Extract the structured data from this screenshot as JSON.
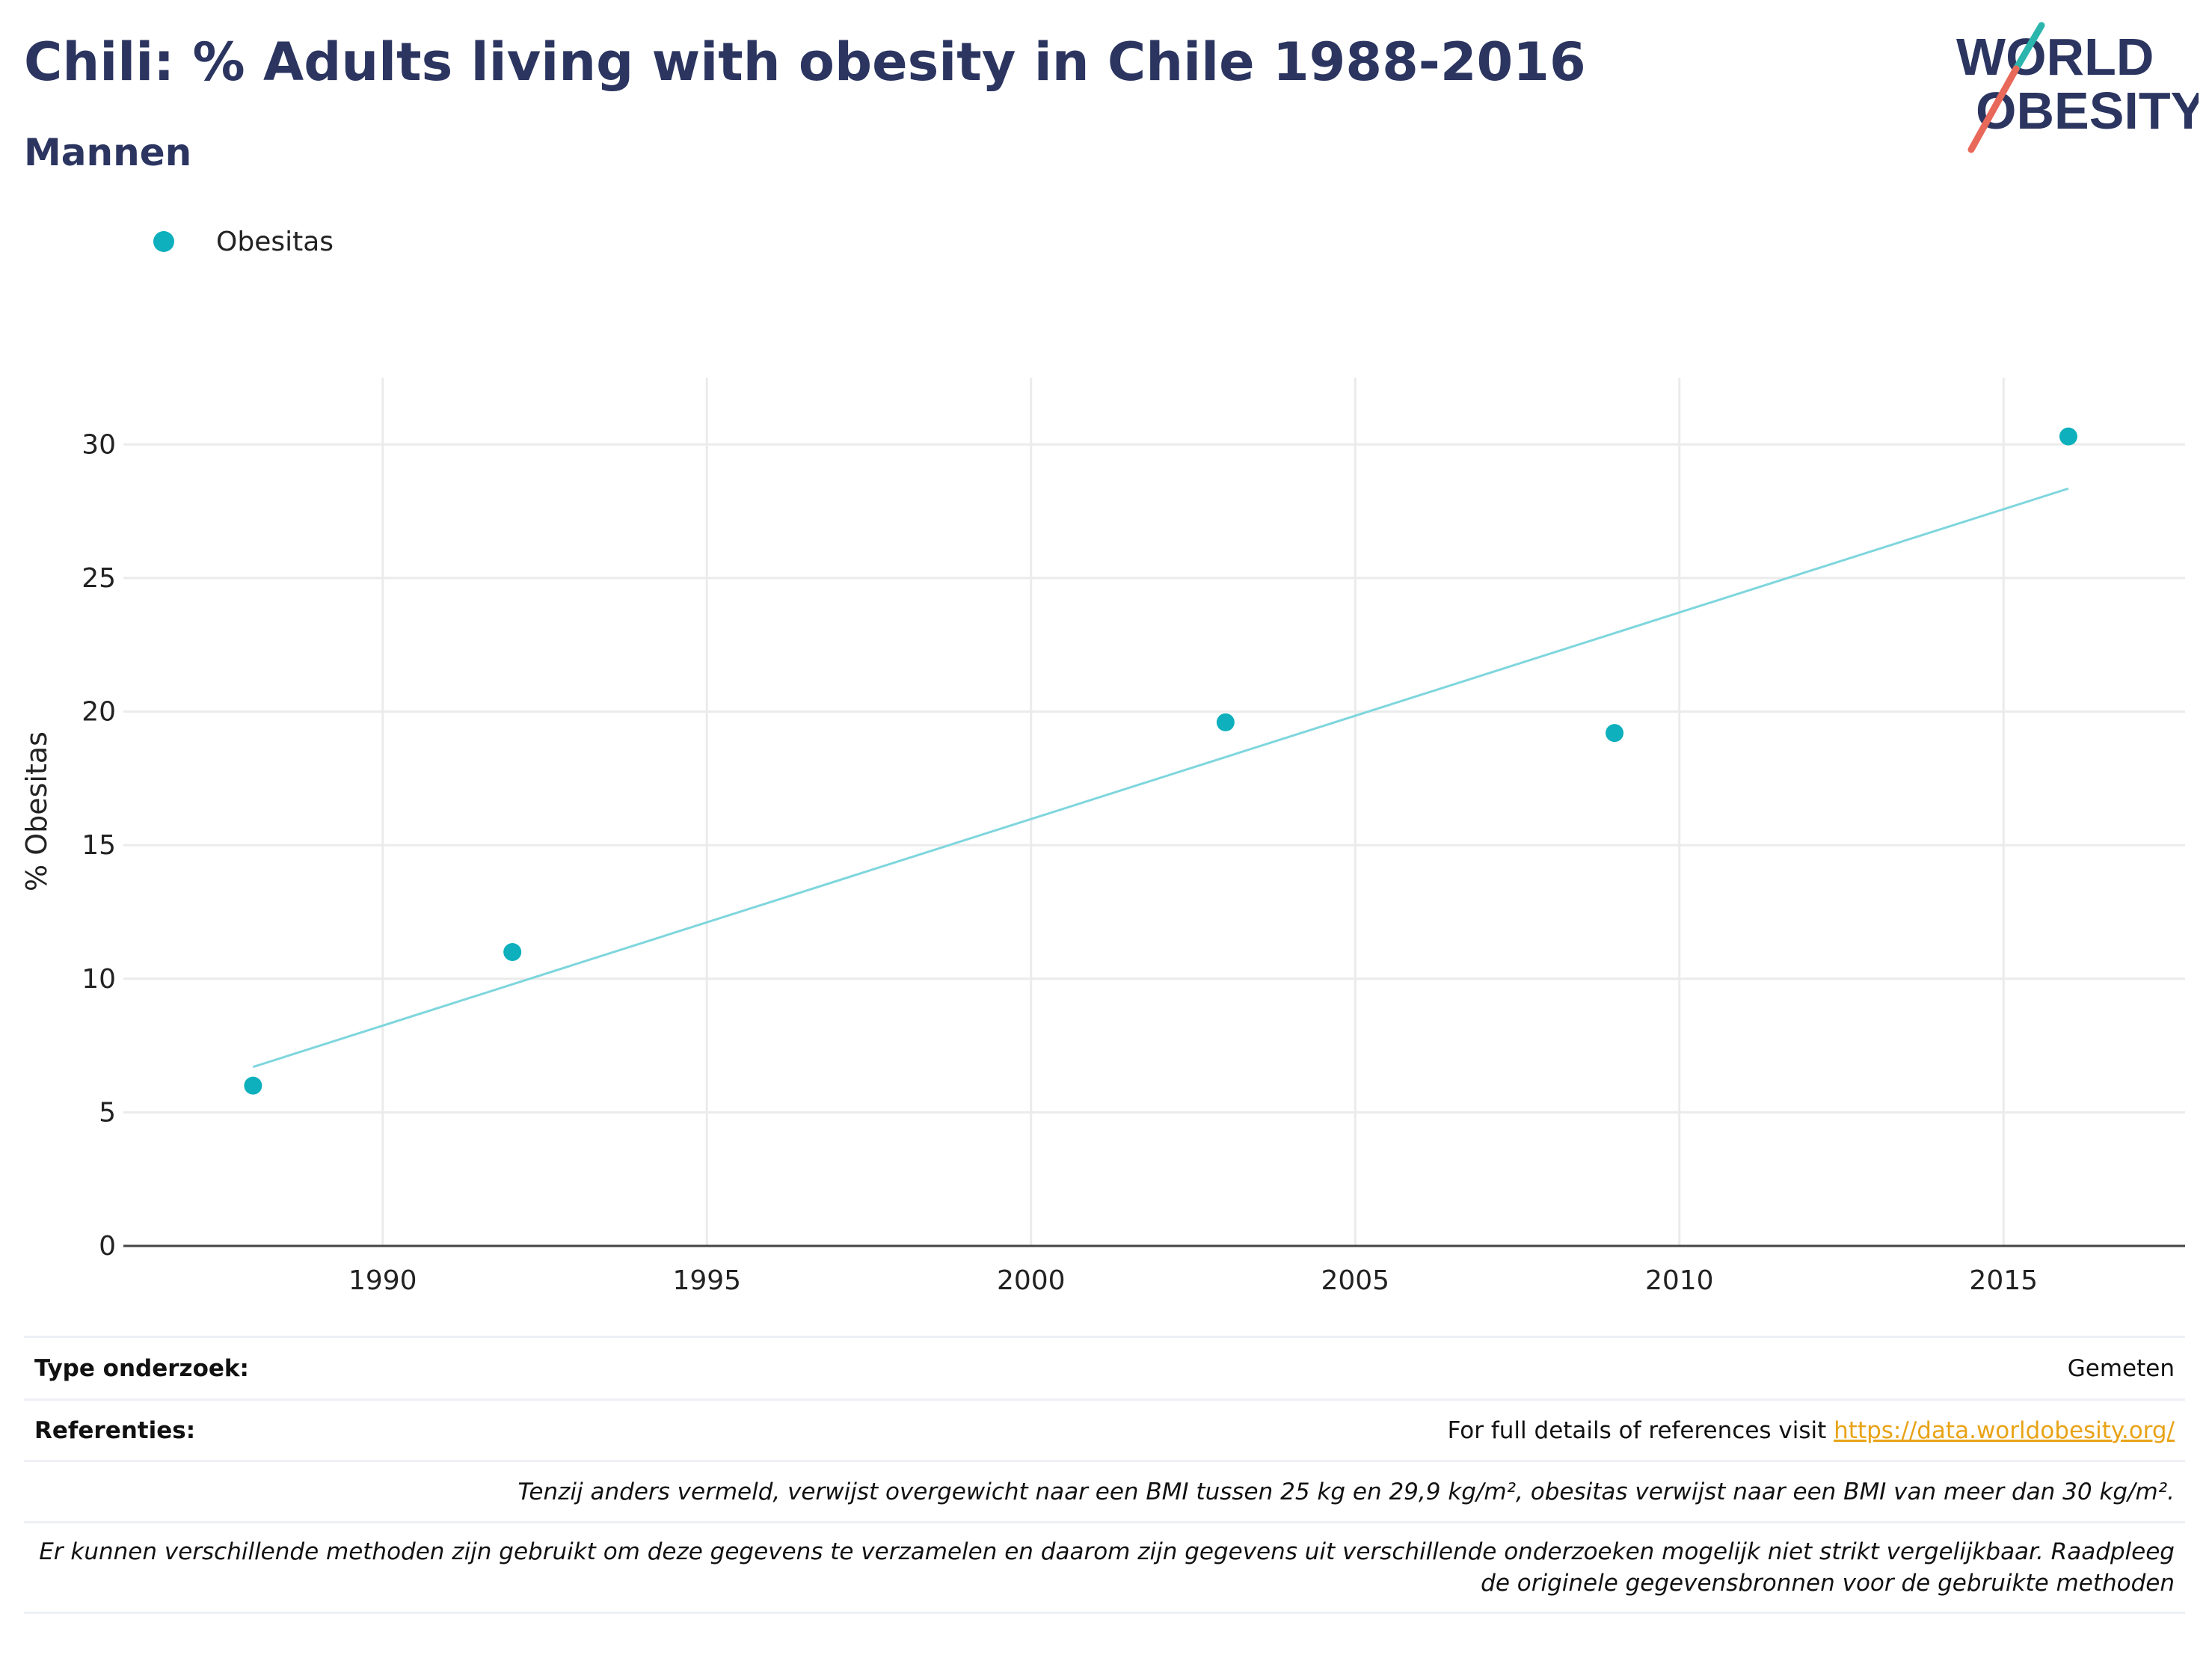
{
  "header": {
    "title": "Chili: % Adults living with obesity in Chile 1988-2016",
    "subtitle": "Mannen"
  },
  "logo": {
    "line1": "WORLD",
    "line2": "OBESITY",
    "accent_teal": "#2bb5ad",
    "accent_red": "#e8685a",
    "text_color": "#2b3560"
  },
  "legend": {
    "label": "Obesitas",
    "color": "#0db0bc"
  },
  "chart_data": {
    "type": "scatter",
    "xlabel": "",
    "ylabel": "% Obesitas",
    "xlim": [
      1986,
      2017.8
    ],
    "ylim": [
      0,
      32.5
    ],
    "xticks": [
      1990,
      1995,
      2000,
      2005,
      2010,
      2015
    ],
    "yticks": [
      0,
      5,
      10,
      15,
      20,
      25,
      30
    ],
    "grid": true,
    "legend_position": "top-left",
    "series": [
      {
        "name": "Obesitas",
        "color": "#0db0bc",
        "x": [
          1988,
          1992,
          2003,
          2009,
          2016
        ],
        "y": [
          6.0,
          11.0,
          19.6,
          19.2,
          30.3
        ]
      }
    ],
    "trendline": {
      "color": "#7fd6dd",
      "x": [
        1988,
        2016
      ],
      "y": [
        6.7,
        28.35
      ]
    }
  },
  "info": {
    "study_type_label": "Type onderzoek:",
    "study_type_value": "Gemeten",
    "references_label": "Referenties:",
    "references_text": "For full details of references visit",
    "references_link": "https://data.worldobesity.org/",
    "note_bmi": "Tenzij anders vermeld, verwijst overgewicht naar een BMI tussen 25 kg en 29,9 kg/m², obesitas verwijst naar een BMI van meer dan 30 kg/m².",
    "note_methods_1": "Er kunnen verschillende methoden zijn gebruikt om deze gegevens te verzamelen en daarom zijn gegevens uit verschillende onderzoeken mogelijk niet strikt vergelijkbaar. Raadpleeg",
    "note_methods_2": "de originele gegevensbronnen voor de gebruikte methoden"
  }
}
